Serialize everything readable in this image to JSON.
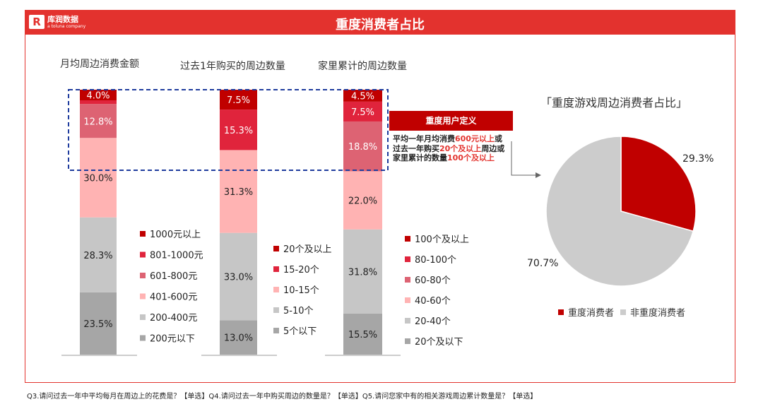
{
  "header": {
    "title": "重度消费者占比",
    "logo_name": "库润数据",
    "logo_sub": "a toluna company",
    "logo_mark": "R"
  },
  "columns": {
    "col1_title": "月均周边消费金额",
    "col2_title": "过去1年购买的周边数量",
    "col3_title": "家里累计的周边数量"
  },
  "definition": {
    "title": "重度用户定义",
    "line1_pre": "平均一年月均消费",
    "line1_hl": "600元以上",
    "line1_post": "或",
    "line2_pre": "过去一年购买",
    "line2_hl": "20个及以上",
    "line2_post": "周边或",
    "line3_pre": "家里累计的数量",
    "line3_hl": "100个及以上",
    "line3_post": ""
  },
  "pie_title": "「重度游戏周边消费者占比」",
  "footer": "Q3.请问过去一年中平均每月在周边上的花费是？【单选】Q4.请问过去一年中购买周边的数量是？【单选】Q5.请问您家中有的相关游戏周边累计数量是？【单选】",
  "colors": {
    "c1": "#c00000",
    "c2": "#e0243c",
    "c3": "#dd6373",
    "c4": "#ffb3b3",
    "c5": "#c6c6c6",
    "c6": "#a6a6a6",
    "pie_heavy": "#c00000",
    "pie_other": "#cccccc",
    "dashed": "#1f3c9e"
  },
  "chart_data": [
    {
      "type": "bar",
      "title": "月均周边消费金额",
      "stacked": true,
      "unit": "%",
      "series": [
        {
          "name": "200元以下",
          "value": 23.5
        },
        {
          "name": "200-400元",
          "value": 28.3
        },
        {
          "name": "401-600元",
          "value": 30.0
        },
        {
          "name": "601-800元",
          "value": 12.8
        },
        {
          "name": "801-1000元",
          "value": 1.4
        },
        {
          "name": "1000元以上",
          "value": 4.0
        }
      ]
    },
    {
      "type": "bar",
      "title": "过去1年购买的周边数量",
      "stacked": true,
      "unit": "%",
      "series": [
        {
          "name": "5个以下",
          "value": 13.0
        },
        {
          "name": "5-10个",
          "value": 33.0
        },
        {
          "name": "10-15个",
          "value": 31.3
        },
        {
          "name": "15-20个",
          "value": 15.3
        },
        {
          "name": "20个及以上",
          "value": 7.5
        }
      ]
    },
    {
      "type": "bar",
      "title": "家里累计的周边数量",
      "stacked": true,
      "unit": "%",
      "series": [
        {
          "name": "20个及以下",
          "value": 15.5
        },
        {
          "name": "20-40个",
          "value": 31.8
        },
        {
          "name": "40-60个",
          "value": 22.0
        },
        {
          "name": "60-80个",
          "value": 18.8
        },
        {
          "name": "80-100个",
          "value": 7.5
        },
        {
          "name": "100个及以上",
          "value": 4.5
        }
      ]
    },
    {
      "type": "pie",
      "title": "「重度游戏周边消费者占比」",
      "slices": [
        {
          "name": "重度消费者",
          "value": 29.3
        },
        {
          "name": "非重度消费者",
          "value": 70.7
        }
      ]
    }
  ]
}
